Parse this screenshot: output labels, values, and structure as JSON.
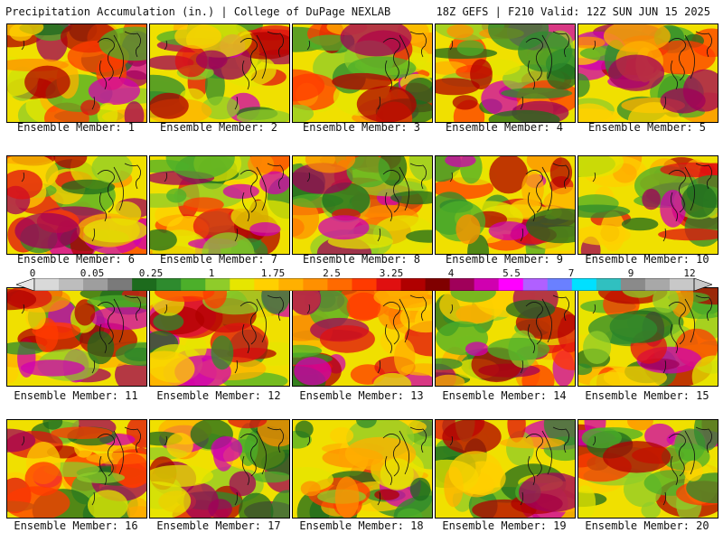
{
  "header": {
    "left_title": "Precipitation Accumulation (in.) | College of DuPage NEXLAB",
    "right_title": "18Z GEFS | F210 Valid: 12Z SUN JUN 15 2025"
  },
  "panels": [
    {
      "label": "Ensemble Member: 1"
    },
    {
      "label": "Ensemble Member: 2"
    },
    {
      "label": "Ensemble Member: 3"
    },
    {
      "label": "Ensemble Member: 4"
    },
    {
      "label": "Ensemble Member: 5"
    },
    {
      "label": "Ensemble Member: 6"
    },
    {
      "label": "Ensemble Member: 7"
    },
    {
      "label": "Ensemble Member: 8"
    },
    {
      "label": "Ensemble Member: 9"
    },
    {
      "label": "Ensemble Member: 10"
    },
    {
      "label": "Ensemble Member: 11"
    },
    {
      "label": "Ensemble Member: 12"
    },
    {
      "label": "Ensemble Member: 13"
    },
    {
      "label": "Ensemble Member: 14"
    },
    {
      "label": "Ensemble Member: 15"
    },
    {
      "label": "Ensemble Member: 16"
    },
    {
      "label": "Ensemble Member: 17"
    },
    {
      "label": "Ensemble Member: 18"
    },
    {
      "label": "Ensemble Member: 19"
    },
    {
      "label": "Ensemble Member: 20"
    }
  ],
  "colorbar": {
    "tick_labels": [
      "0",
      "0.05",
      "0.25",
      "1",
      "1.75",
      "2.5",
      "3.25",
      "4",
      "5.5",
      "7",
      "9",
      "12"
    ],
    "colors": [
      "#d9d9d9",
      "#bdbdbd",
      "#9e9e9e",
      "#7a7a7a",
      "#1d6b1d",
      "#2e8b2e",
      "#4caf2a",
      "#8fcc2a",
      "#e6e600",
      "#ffd000",
      "#ffb000",
      "#ff9000",
      "#ff6a00",
      "#ff3a00",
      "#e01010",
      "#b00000",
      "#800000",
      "#a0005a",
      "#d000b0",
      "#ff00ff",
      "#b060ff",
      "#6a80ff",
      "#00e0ff",
      "#30c0c0",
      "#8a8a8a",
      "#a8a8a8",
      "#c8c8c8"
    ]
  }
}
